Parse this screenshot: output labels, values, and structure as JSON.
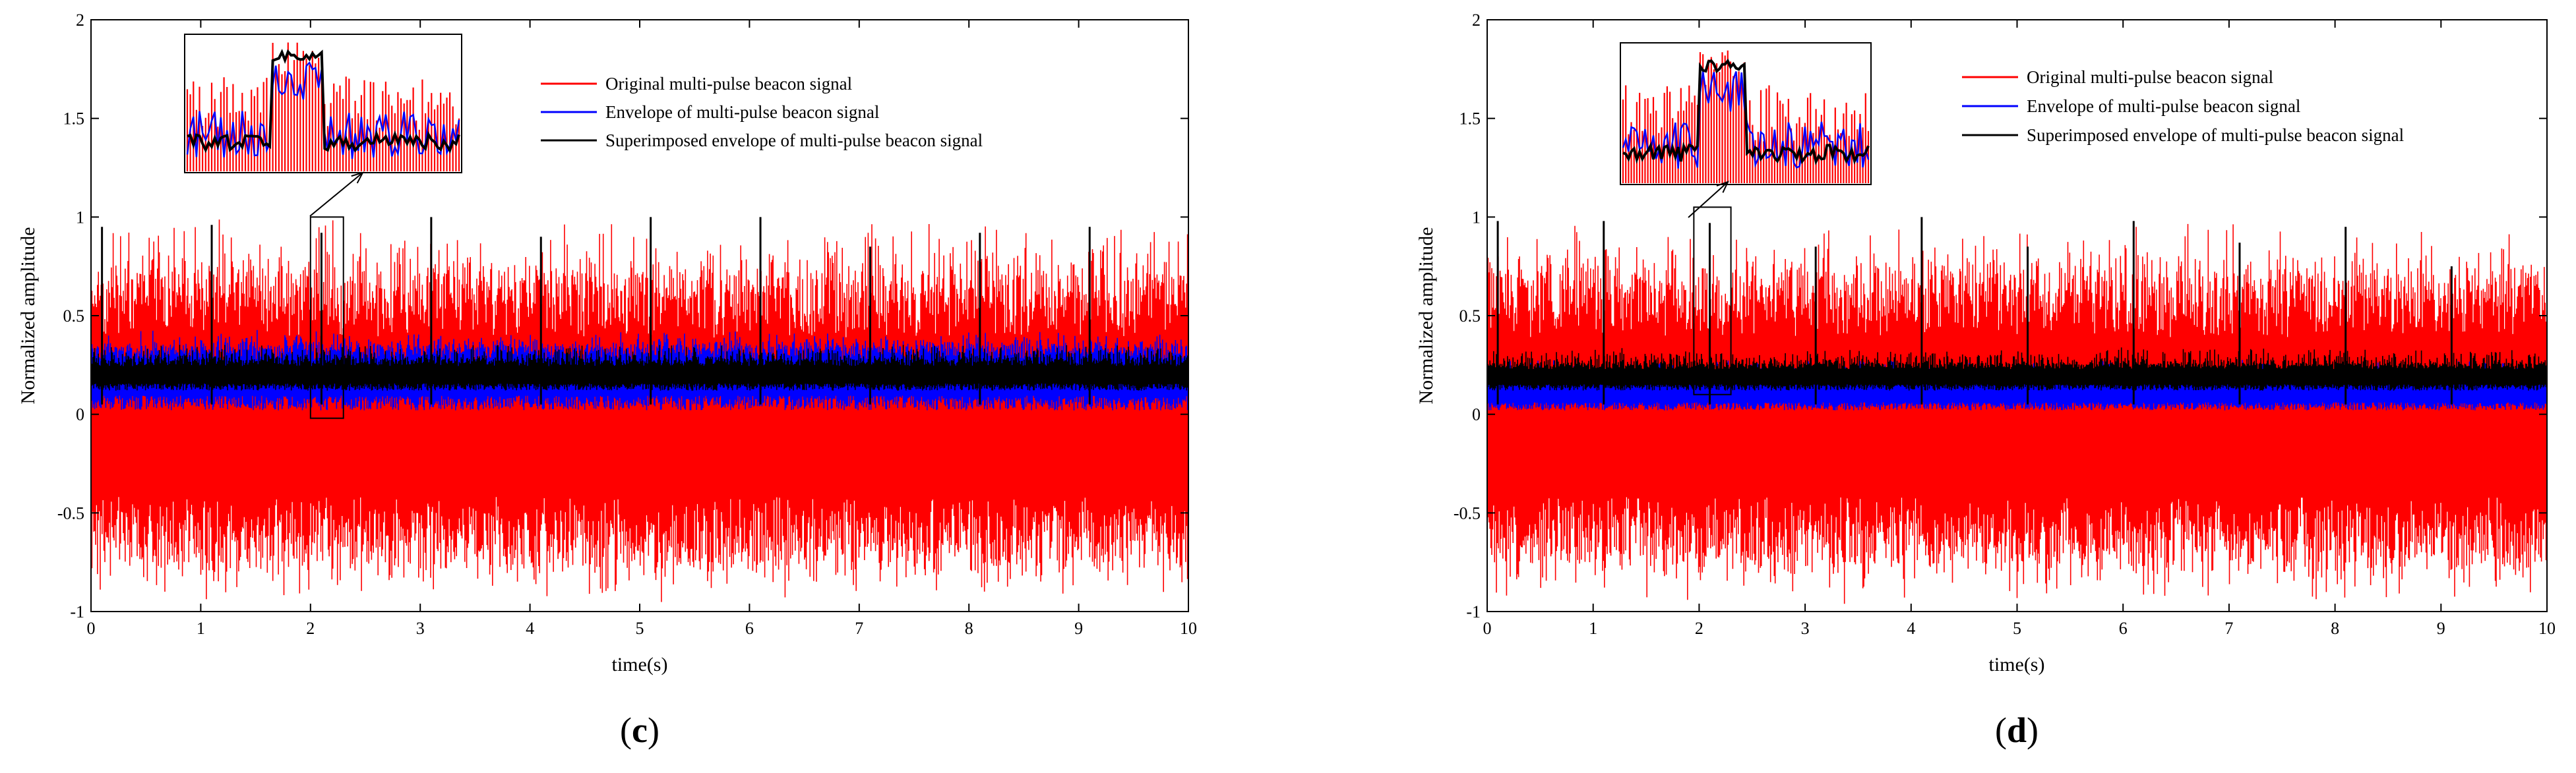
{
  "chart_data": [
    {
      "type": "line",
      "panel_label_open": "(",
      "panel_label_letter": "c",
      "panel_label_close": ")",
      "xlabel": "time(s)",
      "ylabel": "Normalized amplitude",
      "xlim": [
        0,
        10
      ],
      "ylim": [
        -1,
        2
      ],
      "xticks": [
        "0",
        "1",
        "2",
        "3",
        "4",
        "5",
        "6",
        "7",
        "8",
        "9",
        "10"
      ],
      "yticks": [
        "-1",
        "-0.5",
        "0",
        "0.5",
        "1",
        "1.5",
        "2"
      ],
      "legend": [
        "Original multi-pulse beacon signal",
        "Envelope of multi-pulse beacon signal",
        "Superimposed envelope of multi-pulse beacon signal"
      ],
      "series": [
        {
          "name": "Original multi-pulse beacon signal",
          "color": "#ff0000",
          "noise_range": [
            -0.75,
            0.72
          ]
        },
        {
          "name": "Envelope of multi-pulse beacon signal",
          "color": "#0000ff",
          "noise_range": [
            0.02,
            0.35
          ]
        },
        {
          "name": "Superimposed envelope of multi-pulse beacon signal",
          "color": "#000000",
          "noise_range": [
            0.12,
            0.28
          ]
        }
      ],
      "pulse_times": [
        0.1,
        1.1,
        2.1,
        3.1,
        4.1,
        5.1,
        6.1,
        7.1,
        8.1,
        9.1
      ],
      "pulse_peaks": [
        0.95,
        0.96,
        0.92,
        1.0,
        0.9,
        1.0,
        1.0,
        0.85,
        0.92,
        0.95
      ],
      "zoom_window_time": [
        2.0,
        2.3
      ],
      "zoom_window_amp": [
        -0.02,
        1.0
      ]
    },
    {
      "type": "line",
      "panel_label_open": "(",
      "panel_label_letter": "d",
      "panel_label_close": ")",
      "xlabel": "time(s)",
      "ylabel": "Normalized amplitude",
      "xlim": [
        0,
        10
      ],
      "ylim": [
        -1,
        2
      ],
      "xticks": [
        "0",
        "1",
        "2",
        "3",
        "4",
        "5",
        "6",
        "7",
        "8",
        "9",
        "10"
      ],
      "yticks": [
        "-1",
        "-0.5",
        "0",
        "0.5",
        "1",
        "1.5",
        "2"
      ],
      "legend": [
        "Original multi-pulse beacon signal",
        "Envelope of multi-pulse beacon signal",
        "Superimposed envelope of multi-pulse beacon signal"
      ],
      "series": [
        {
          "name": "Original multi-pulse beacon signal",
          "color": "#ff0000",
          "noise_range": [
            -0.75,
            0.72
          ]
        },
        {
          "name": "Envelope of multi-pulse beacon signal",
          "color": "#0000ff",
          "noise_range": [
            0.02,
            0.2
          ]
        },
        {
          "name": "Superimposed envelope of multi-pulse beacon signal",
          "color": "#000000",
          "noise_range": [
            0.12,
            0.26
          ]
        }
      ],
      "pulse_times": [
        0.1,
        1.1,
        2.1,
        3.1,
        4.1,
        5.1,
        6.1,
        7.1,
        8.1,
        9.1
      ],
      "pulse_peaks": [
        0.98,
        0.98,
        0.97,
        0.85,
        1.0,
        0.85,
        0.98,
        0.87,
        0.95,
        0.75
      ],
      "zoom_window_time": [
        1.95,
        2.3
      ],
      "zoom_window_amp": [
        0.1,
        1.05
      ]
    }
  ]
}
